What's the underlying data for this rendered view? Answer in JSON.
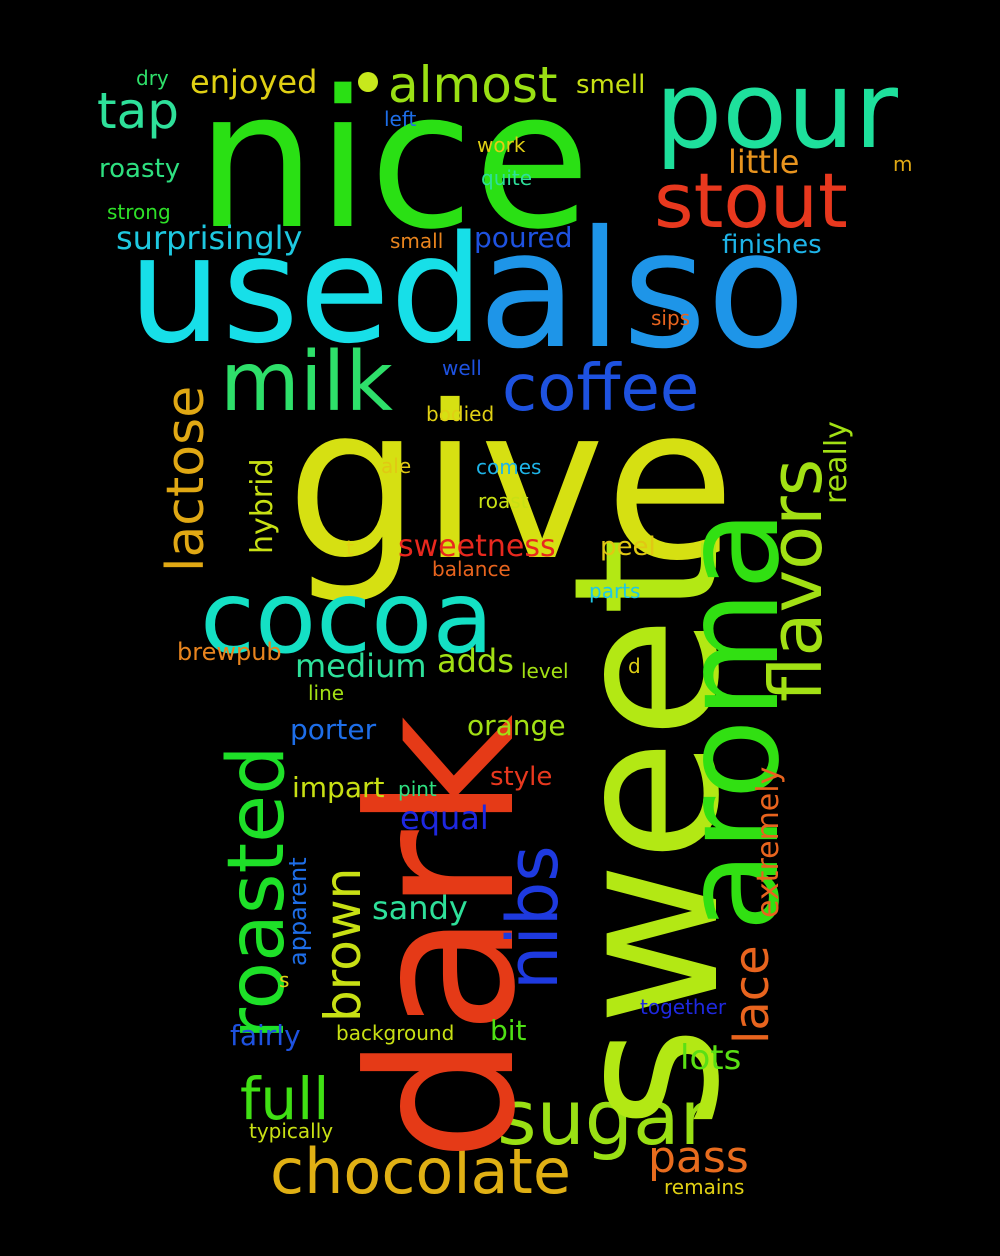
{
  "words": {
    "nice": "nice",
    "pour": "pour",
    "stout": "stout",
    "used": "used",
    "also": "also",
    "almost": "almost",
    "tap": "tap",
    "enjoyed": "enjoyed",
    "smell": "smell",
    "dry": "dry",
    "left": "left",
    "work": "work",
    "little": "little",
    "m": "m",
    "roasty": "roasty",
    "quite": "quite",
    "strong": "strong",
    "surprisingly": "surprisingly",
    "small": "small",
    "poured": "poured",
    "finishes": "finishes",
    "sips": "sips",
    "milk": "milk",
    "coffee": "coffee",
    "give": "give",
    "lactose": "lactose",
    "well": "well",
    "bodied": "bodied",
    "flavors": "flavors",
    "really": "really",
    "hybrid": "hybrid",
    "ale": "ale",
    "comes": "comes",
    "roast": "roast",
    "t": "t",
    "sweetness": "sweetness",
    "peel": "peel",
    "balance": "balance",
    "cocoa": "cocoa",
    "parts": "parts",
    "aroma": "aroma",
    "sweet": "sweet",
    "dark": "dark",
    "brewpub": "brewpub",
    "medium": "medium",
    "adds": "adds",
    "level": "level",
    "d": "d",
    "line": "line",
    "roasted": "roasted",
    "porter": "porter",
    "orange": "orange",
    "extremely": "extremely",
    "style": "style",
    "impart": "impart",
    "pint": "pint",
    "equal": "equal",
    "nibs": "nibs",
    "brown": "brown",
    "apparent": "apparent",
    "sandy": "sandy",
    "lace": "lace",
    "s": "s",
    "together": "together",
    "fairly": "fairly",
    "background": "background",
    "bit": "bit",
    "lots": "lots",
    "full": "full",
    "sugar": "sugar",
    "typically": "typically",
    "chocolate": "chocolate",
    "pass": "pass",
    "remains": "remains"
  },
  "colors": {
    "background": "#000000",
    "nice": "#2ae014",
    "used": "#17dfe8",
    "also": "#1e95e8",
    "give": "#d6e012",
    "sweet": "#b3e814",
    "dark": "#e53a17",
    "aroma": "#31e012"
  }
}
